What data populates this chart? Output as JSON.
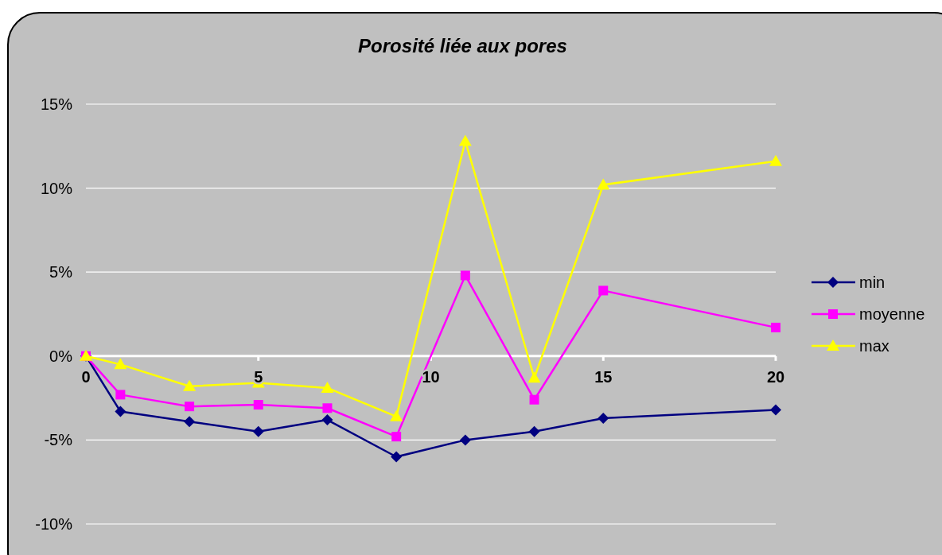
{
  "chart_data": {
    "type": "line",
    "title": "Porosité liée aux pores",
    "x": [
      0,
      1,
      3,
      5,
      7,
      9,
      11,
      13,
      15,
      20
    ],
    "series": [
      {
        "name": "min",
        "color": "#000080",
        "marker": "diamond",
        "values": [
          0,
          -3.3,
          -3.9,
          -4.5,
          -3.8,
          -6.0,
          -5.0,
          -4.5,
          -3.7,
          -3.2
        ]
      },
      {
        "name": "moyenne",
        "color": "#ff00ff",
        "marker": "square",
        "values": [
          0,
          -2.3,
          -3.0,
          -2.9,
          -3.1,
          -4.8,
          4.8,
          -2.6,
          3.9,
          1.7
        ]
      },
      {
        "name": "max",
        "color": "#ffff00",
        "marker": "triangle",
        "values": [
          0,
          -0.5,
          -1.8,
          -1.6,
          -1.9,
          -3.6,
          12.8,
          -1.3,
          10.2,
          11.6
        ]
      }
    ],
    "xlim": [
      0,
      20
    ],
    "xticks": [
      0,
      5,
      10,
      15,
      20
    ],
    "ylim": [
      -10,
      15
    ],
    "yticks": [
      {
        "value": -10,
        "label": "-10%"
      },
      {
        "value": -5,
        "label": "-5%"
      },
      {
        "value": 0,
        "label": "0%"
      },
      {
        "value": 5,
        "label": "5%"
      },
      {
        "value": 10,
        "label": "10%"
      },
      {
        "value": 15,
        "label": "15%"
      }
    ],
    "grid": "y",
    "legend": "right",
    "line_style": "solid"
  }
}
